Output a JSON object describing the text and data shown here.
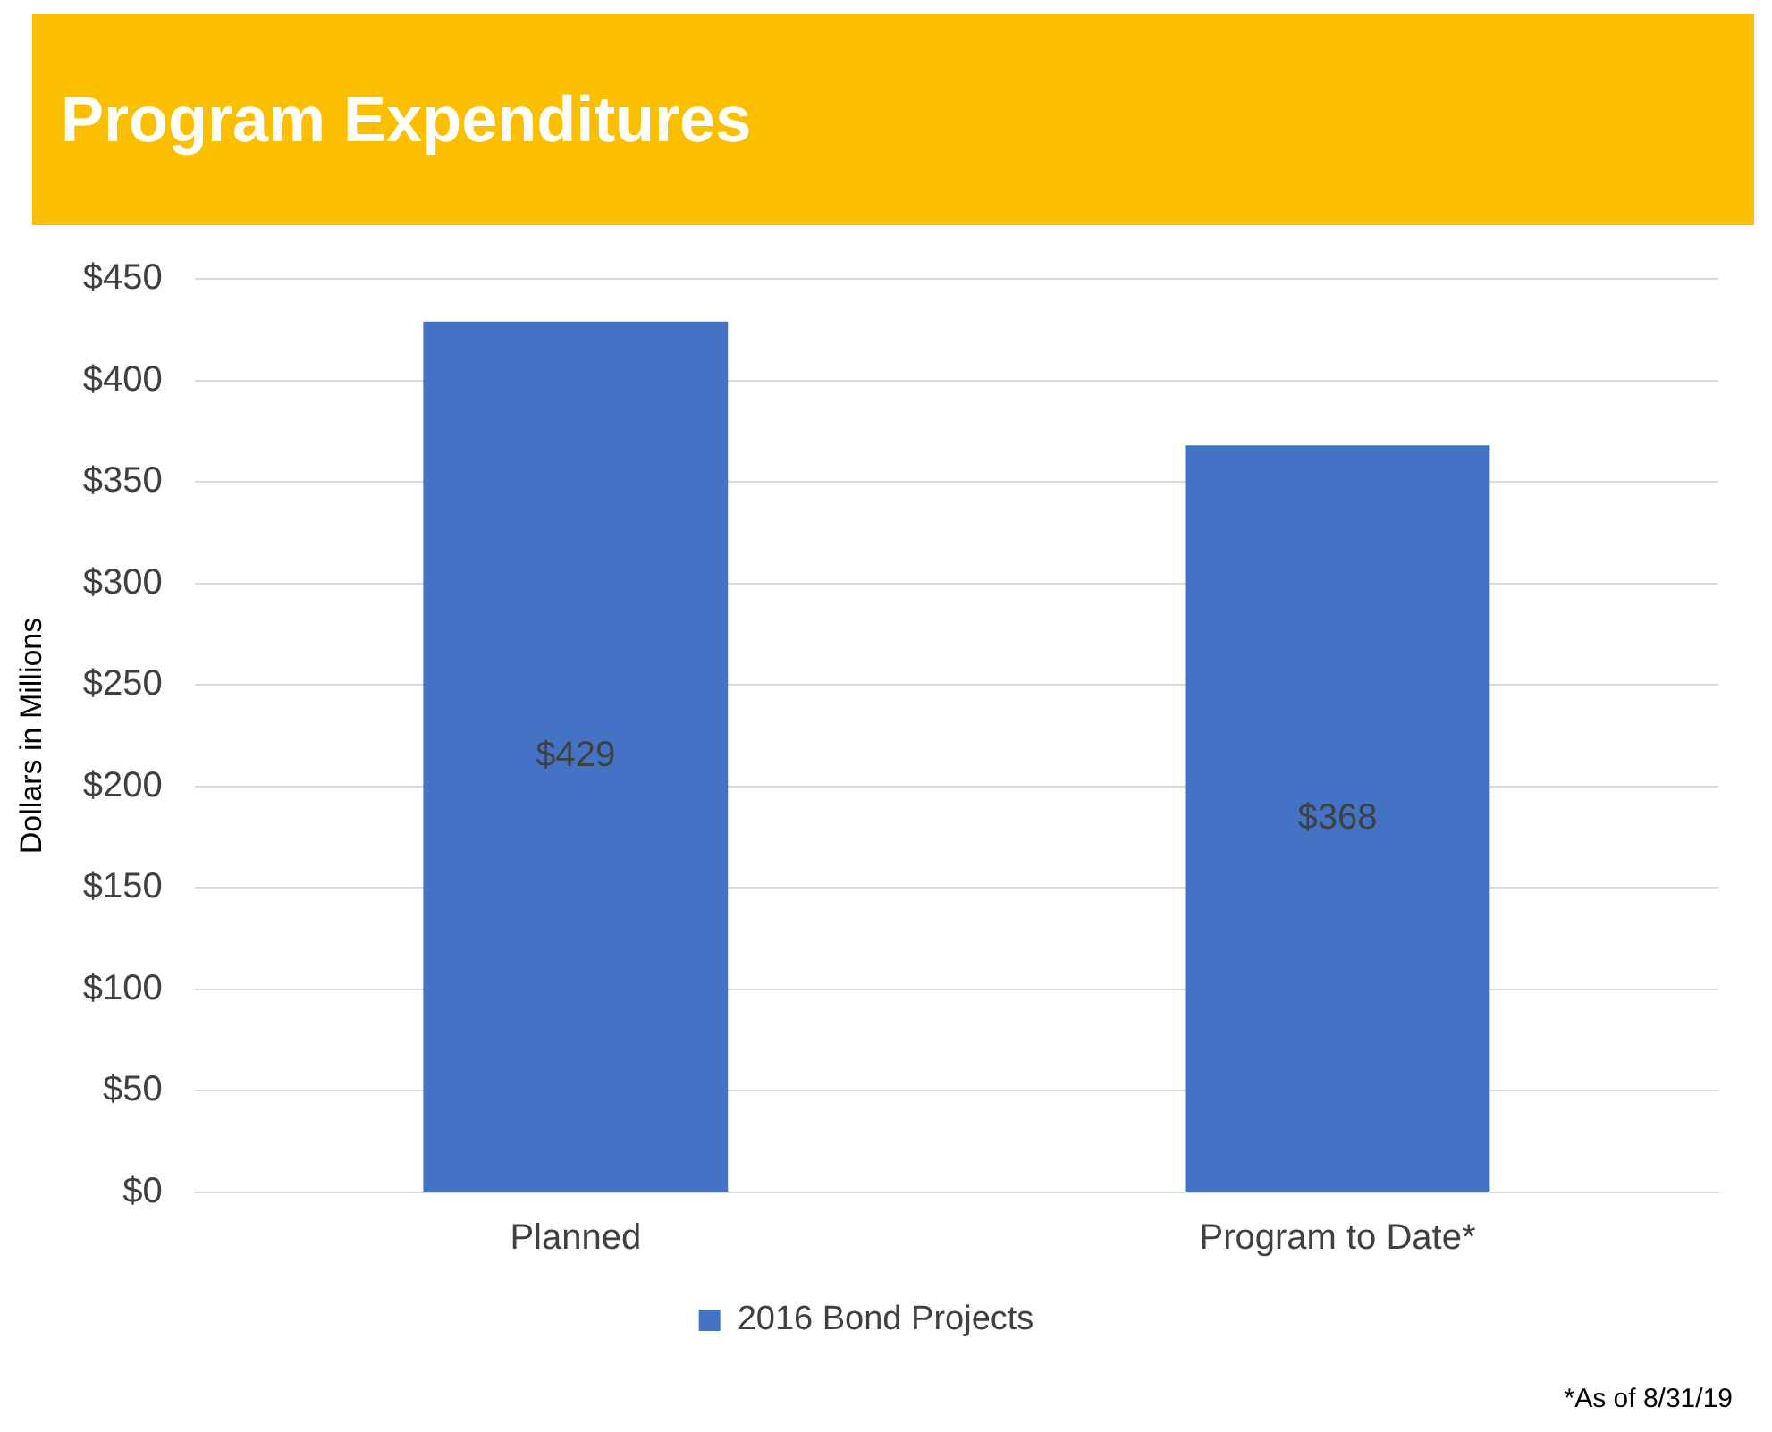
{
  "chart_data": {
    "type": "bar",
    "title": "Program Expenditures",
    "ylabel": "Dollars in Millions",
    "categories": [
      "Planned",
      "Program to Date*"
    ],
    "series": [
      {
        "name": "2016 Bond Projects",
        "color": "#4472c4",
        "values": [
          429,
          368
        ],
        "value_labels": [
          "$429",
          "$368"
        ]
      }
    ],
    "ylim": [
      0,
      450
    ],
    "yticks": [
      {
        "value": 0,
        "label": "$0"
      },
      {
        "value": 50,
        "label": "$50"
      },
      {
        "value": 100,
        "label": "$100"
      },
      {
        "value": 150,
        "label": "$150"
      },
      {
        "value": 200,
        "label": "$200"
      },
      {
        "value": 250,
        "label": "$250"
      },
      {
        "value": 300,
        "label": "$300"
      },
      {
        "value": 350,
        "label": "$350"
      },
      {
        "value": 400,
        "label": "$400"
      },
      {
        "value": 450,
        "label": "$450"
      }
    ],
    "grid": "y",
    "legend": "bottom",
    "annotations": [
      "*As of 8/31/19"
    ]
  }
}
